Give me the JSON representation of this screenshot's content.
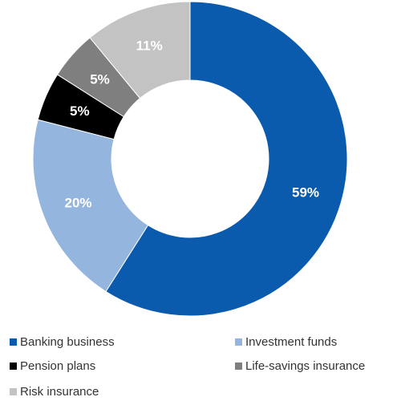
{
  "chart_data": {
    "type": "pie",
    "categories": [
      "Banking business",
      "Investment funds",
      "Pension plans",
      "Life-savings insurance",
      "Risk insurance"
    ],
    "values": [
      59,
      20,
      5,
      5,
      11
    ],
    "labels": [
      "59%",
      "20%",
      "5%",
      "5%",
      "11%"
    ],
    "colors": [
      "#0a5aae",
      "#94b5dd",
      "#000000",
      "#7f7f7f",
      "#c3c3c3"
    ],
    "label_colors": [
      "#ffffff",
      "#ffffff",
      "#ffffff",
      "#ffffff",
      "#ffffff"
    ],
    "donut": true,
    "legend_position": "bottom"
  }
}
